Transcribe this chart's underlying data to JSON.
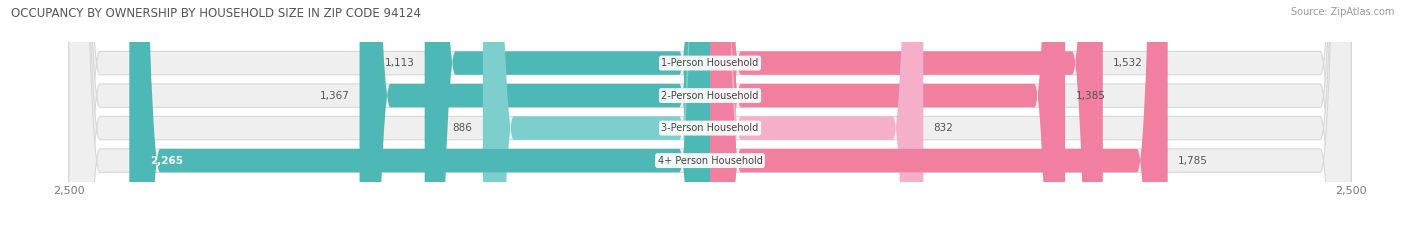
{
  "title": "OCCUPANCY BY OWNERSHIP BY HOUSEHOLD SIZE IN ZIP CODE 94124",
  "source": "Source: ZipAtlas.com",
  "categories": [
    "1-Person Household",
    "2-Person Household",
    "3-Person Household",
    "4+ Person Household"
  ],
  "owner_values": [
    1113,
    1367,
    886,
    2265
  ],
  "renter_values": [
    1532,
    1385,
    832,
    1785
  ],
  "owner_color": "#4db8b5",
  "renter_color": "#f07fa0",
  "renter_color_light": "#f5afc8",
  "axis_max": 2500,
  "bg_color": "#ffffff",
  "bar_bg_color": "#efefef",
  "bar_border_color": "#d8d8d8",
  "label_color": "#555555",
  "title_color": "#333333",
  "bar_height": 0.72,
  "bar_gap": 0.28,
  "value_label_inside_threshold": 2000
}
